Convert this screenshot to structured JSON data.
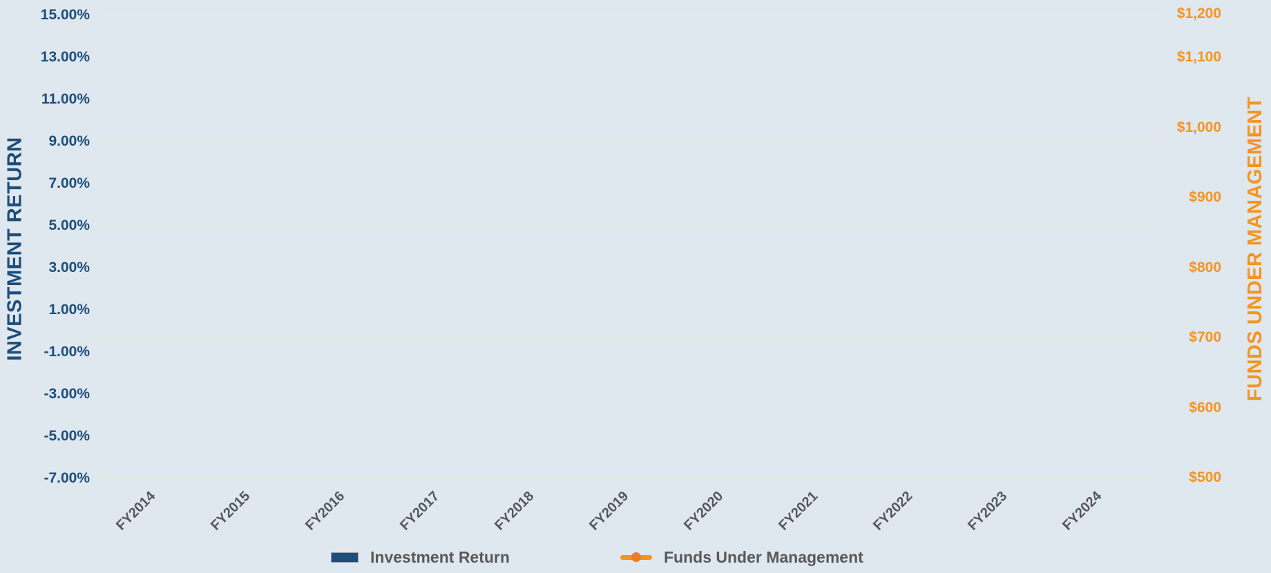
{
  "chart_data": {
    "type": "combo",
    "categories": [
      "FY2014",
      "FY2015",
      "FY2016",
      "FY2017",
      "FY2018",
      "FY2019",
      "FY2020",
      "FY2021",
      "FY2022",
      "FY2023",
      "FY2024"
    ],
    "series": [
      {
        "name": "Investment Return",
        "type": "bar",
        "color": "#1d4e79",
        "values": []
      },
      {
        "name": "Funds Under Management",
        "type": "line",
        "color": "#f5941f",
        "values": []
      }
    ],
    "left_axis": {
      "title": "INVESTMENT RETURN",
      "tick_labels": [
        "15.00%",
        "13.00%",
        "11.00%",
        "9.00%",
        "7.00%",
        "5.00%",
        "3.00%",
        "1.00%",
        "-1.00%",
        "-3.00%",
        "-5.00%",
        "-7.00%"
      ],
      "min": -7,
      "max": 15,
      "step": 2
    },
    "right_axis": {
      "title": "FUNDS UNDER MANAGEMENT",
      "ticks": [
        {
          "label": "$1,200",
          "value": 1200
        },
        {
          "label": "$1,100",
          "value": 1100
        },
        {
          "label": "$1,000",
          "value": 1000
        },
        {
          "label": "$900",
          "value": 900
        },
        {
          "label": "$800",
          "value": 800
        },
        {
          "label": "$700",
          "value": 700
        },
        {
          "label": "$600",
          "value": 600
        },
        {
          "label": "$500",
          "value": 500
        }
      ],
      "min": 500,
      "max": 1200,
      "step": 100
    },
    "legend": {
      "position": "bottom",
      "entries": [
        {
          "label": "Investment Return",
          "marker": "bar",
          "color": "#1d4e79"
        },
        {
          "label": "Funds Under Management",
          "marker": "line-dot",
          "color": "#f5941f"
        }
      ]
    },
    "grid": true,
    "background": "#dfe7ef"
  },
  "colors": {
    "navy": "#1d4e79",
    "orange": "#f5941f",
    "orange_dot": "#ed7d23",
    "text_gray": "#595959",
    "gridline": "#e6e8e1",
    "background": "#dfe7ef"
  }
}
